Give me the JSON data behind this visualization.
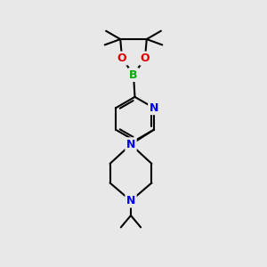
{
  "background_color": "#e8e8e8",
  "atom_colors": {
    "C": "#000000",
    "N": "#0000ee",
    "O": "#dd0000",
    "B": "#00aa00"
  },
  "bond_color": "#000000",
  "bond_width": 1.5,
  "figsize": [
    3.0,
    3.0
  ],
  "dpi": 100,
  "xlim": [
    0,
    10
  ],
  "ylim": [
    0,
    10
  ]
}
